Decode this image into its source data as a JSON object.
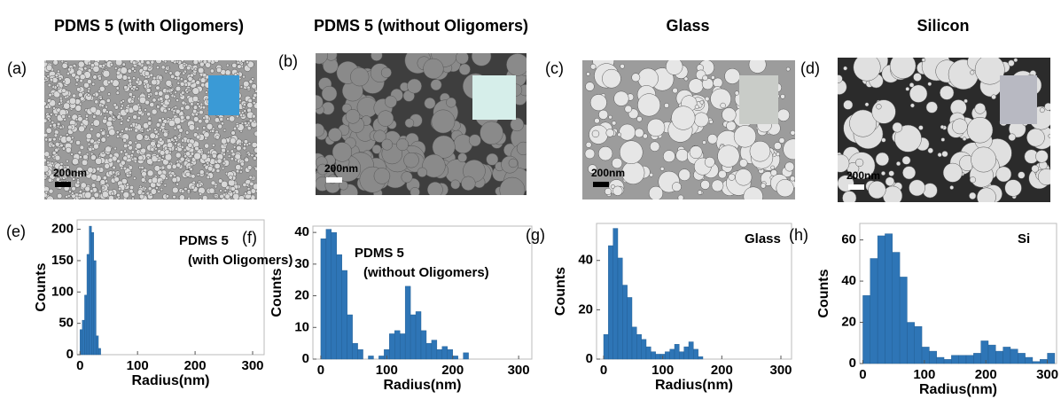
{
  "panels": [
    {
      "title": "PDMS 5 (with Oligomers)",
      "label": "(a)",
      "scale_bar": "200nm"
    },
    {
      "title": "PDMS 5 (without Oligomers)",
      "label": "(b)",
      "scale_bar": "200nm"
    },
    {
      "title": "Glass",
      "label": "(c)",
      "scale_bar": "200nm"
    },
    {
      "title": "Silicon",
      "label": "(d)",
      "scale_bar": "200nm"
    }
  ],
  "chart_data": [
    {
      "type": "histogram",
      "label": "(e)",
      "annotation": [
        "PDMS 5",
        "(with Oligomers)"
      ],
      "xlabel": "Radius(nm)",
      "ylabel": "Counts",
      "color": "#2e75b6",
      "bins": [
        0,
        4,
        8,
        12,
        16,
        20,
        24,
        28,
        32,
        36
      ],
      "counts": [
        40,
        55,
        95,
        160,
        205,
        195,
        150,
        30,
        10
      ],
      "xlim": [
        -5,
        320
      ],
      "xticks": [
        0,
        100,
        200,
        300
      ],
      "ylim": [
        0,
        215
      ],
      "yticks": [
        0,
        50,
        100,
        150,
        200
      ]
    },
    {
      "type": "histogram",
      "label": "(f)",
      "annotation": [
        "PDMS 5",
        "(without Oligomers)"
      ],
      "xlabel": "Radius(nm)",
      "ylabel": "Counts",
      "color": "#2e75b6",
      "bins": [
        0,
        8,
        16,
        24,
        32,
        40,
        48,
        56,
        64,
        72,
        80,
        88,
        96,
        104,
        112,
        120,
        128,
        136,
        144,
        152,
        160,
        168,
        176,
        184,
        192,
        200,
        208,
        216,
        224
      ],
      "counts": [
        38,
        41,
        40,
        33,
        28,
        14,
        5,
        3,
        0,
        1,
        0,
        1,
        3,
        8,
        9,
        8,
        23,
        14,
        15,
        9,
        5,
        6,
        3,
        4,
        3,
        1,
        0,
        2
      ],
      "xlim": [
        -12,
        320
      ],
      "xticks": [
        0,
        100,
        200,
        300
      ],
      "ylim": [
        0,
        42
      ],
      "yticks": [
        0,
        10,
        20,
        30,
        40
      ]
    },
    {
      "type": "histogram",
      "label": "(g)",
      "annotation": [
        "Glass"
      ],
      "xlabel": "Radius(nm)",
      "ylabel": "Counts",
      "color": "#2e75b6",
      "bins": [
        0,
        8,
        16,
        24,
        32,
        40,
        48,
        56,
        64,
        72,
        80,
        88,
        96,
        104,
        112,
        120,
        128,
        136,
        144,
        152,
        160,
        168
      ],
      "counts": [
        10,
        46,
        53,
        41,
        30,
        25,
        13,
        10,
        8,
        5,
        3,
        2,
        2,
        3,
        4,
        6,
        3,
        5,
        7,
        4,
        1
      ],
      "xlim": [
        -12,
        318
      ],
      "xticks": [
        0,
        100,
        200,
        300
      ],
      "ylim": [
        0,
        55
      ],
      "yticks": [
        0,
        20,
        40
      ]
    },
    {
      "type": "histogram",
      "label": "(h)",
      "annotation": [
        "Si"
      ],
      "xlabel": "Radius(nm)",
      "ylabel": "Counts",
      "color": "#2e75b6",
      "bins": [
        0,
        12,
        24,
        36,
        48,
        60,
        72,
        84,
        96,
        108,
        120,
        132,
        144,
        156,
        168,
        180,
        192,
        204,
        216,
        228,
        240,
        252,
        264,
        276,
        288,
        300,
        312
      ],
      "counts": [
        33,
        51,
        62,
        63,
        54,
        42,
        20,
        18,
        8,
        6,
        3,
        2,
        4,
        4,
        4,
        5,
        11,
        9,
        6,
        8,
        7,
        5,
        3,
        1,
        2,
        5
      ],
      "xlim": [
        -5,
        315
      ],
      "xticks": [
        0,
        100,
        200,
        300
      ],
      "ylim": [
        0,
        68
      ],
      "yticks": [
        0,
        20,
        40,
        60
      ]
    }
  ]
}
